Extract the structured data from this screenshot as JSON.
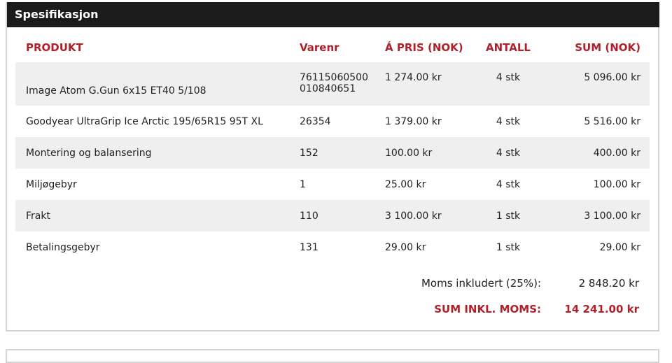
{
  "title": "Spesifikasjon",
  "columns": [
    "PRODUKT",
    "Varenr",
    "Á PRIS (NOK)",
    "ANTALL",
    "SUM (NOK)"
  ],
  "rows": [
    {
      "product": "Image Atom G.Gun 6x15 ET40 5/108",
      "varenr": "76115060500 010840651",
      "price": "1 274.00 kr",
      "qty": "4 stk",
      "sum": "5 096.00 kr"
    },
    {
      "product": "Goodyear UltraGrip Ice Arctic 195/65R15 95T XL",
      "varenr": "26354",
      "price": "1 379.00 kr",
      "qty": "4 stk",
      "sum": "5 516.00 kr"
    },
    {
      "product": "Montering og balansering",
      "varenr": "152",
      "price": "100.00 kr",
      "qty": "4 stk",
      "sum": "400.00 kr"
    },
    {
      "product": "Miljøgebyr",
      "varenr": "1",
      "price": "25.00 kr",
      "qty": "4 stk",
      "sum": "100.00 kr"
    },
    {
      "product": "Frakt",
      "varenr": "110",
      "price": "3 100.00 kr",
      "qty": "1 stk",
      "sum": "3 100.00 kr"
    },
    {
      "product": "Betalingsgebyr",
      "varenr": "131",
      "price": "29.00 kr",
      "qty": "1 stk",
      "sum": "29.00 kr"
    }
  ],
  "totals": {
    "vat_label": "Moms inkludert (25%):",
    "vat_value": "2 848.20 kr",
    "sum_label": "SUM INKL. MOMS:",
    "sum_value": "14 241.00 kr"
  },
  "colors": {
    "accent": "#b0202a",
    "header_bg": "#1b1b1b",
    "row_alt": "#efefef"
  }
}
